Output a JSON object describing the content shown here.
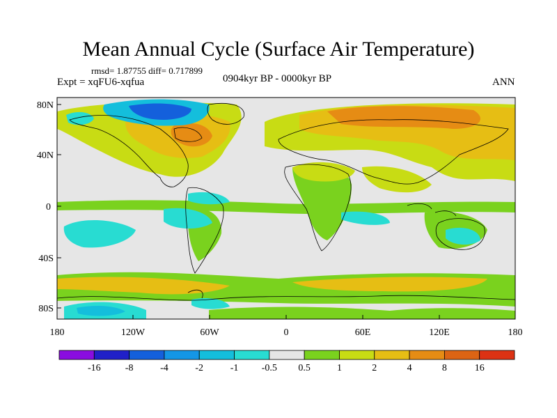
{
  "title": "Mean Annual Cycle (Surface Air Temperature)",
  "stats": "rmsd= 1.87755 diff= 0.717899",
  "experiment": "Expt = xqFU6-xqfua",
  "period": "0904kyr BP - 0000kyr BP",
  "season": "ANN",
  "lat_labels": [
    "80N",
    "40N",
    "0",
    "40S",
    "80S"
  ],
  "lon_labels": [
    "180",
    "120W",
    "60W",
    "0",
    "60E",
    "120E",
    "180"
  ],
  "colorbar": {
    "labels": [
      "-16",
      "-8",
      "-4",
      "-2",
      "-1",
      "-0.5",
      "0.5",
      "1",
      "2",
      "4",
      "8",
      "16"
    ],
    "colors": [
      "#8a0de0",
      "#2020c8",
      "#1460dc",
      "#1496e6",
      "#14bedc",
      "#28dcd2",
      "#e6e6e6",
      "#7ad21e",
      "#c8dc14",
      "#e6be14",
      "#e68c14",
      "#dc6414",
      "#dc3214"
    ]
  },
  "colors": {
    "ocean_neutral": "#e6e6e6",
    "cool": "#28dcd2",
    "cool_strong": "#14bedc",
    "warm_light": "#7ad21e",
    "warm_mid": "#c8dc14",
    "warm": "#e6be14",
    "warm_strong": "#e68c14",
    "hot": "#dc6414",
    "very_cold": "#1460dc"
  }
}
